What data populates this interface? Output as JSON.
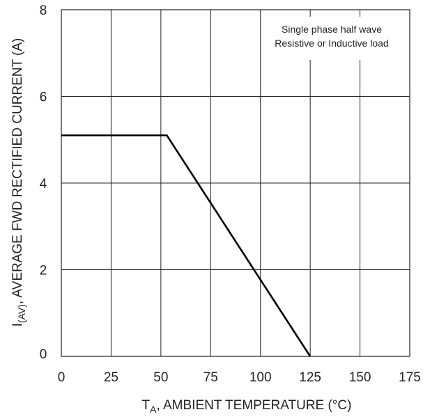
{
  "chart_data": {
    "type": "line",
    "title": "",
    "xlabel": "T_A, AMBIENT TEMPERATURE (°C)",
    "xlabel_parts": {
      "main": "T",
      "sub": "A",
      "rest": ", AMBIENT TEMPERATURE (°C)"
    },
    "ylabel": "I_(AV), AVERAGE FWD RECTIFIED CURRENT (A)",
    "ylabel_parts": {
      "main": "I",
      "sub": "(AV)",
      "rest": ", AVERAGE FWD RECTIFIED CURRENT (A)"
    },
    "xlim": [
      0,
      175
    ],
    "ylim": [
      0,
      8
    ],
    "x_ticks": [
      0,
      25,
      50,
      75,
      100,
      125,
      150,
      175
    ],
    "x_tick_labels": [
      "0",
      "25",
      "50",
      "75",
      "100",
      "125",
      "150",
      "175"
    ],
    "y_ticks": [
      0,
      2,
      4,
      6,
      8
    ],
    "y_tick_labels": [
      "0",
      "2",
      "4",
      "6",
      "8"
    ],
    "grid": true,
    "series": [
      {
        "x": [
          0,
          53,
          125
        ],
        "y": [
          5.1,
          5.1,
          0
        ]
      }
    ],
    "annotations": [
      "Single phase half wave",
      "Resistive or Inductive load"
    ],
    "colors": {
      "line": "#000000",
      "grid": "#231f20",
      "text": "#231f20"
    }
  }
}
